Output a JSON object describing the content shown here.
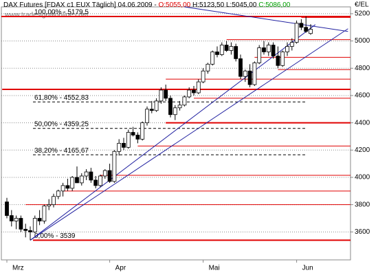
{
  "chart_data": {
    "type": "candlestick",
    "header": {
      "instrument": "DAX Futures [FDAX c1 EUX  Täglich]",
      "date": "04.06.2009 -",
      "open": "O:5055,00",
      "high": "H:5123,50",
      "low": "L:5045,00",
      "close": "C:5086,00"
    },
    "watermark": "www.tradesignalonline.com",
    "unit": "€/EL",
    "categories": [
      "Mrz",
      null,
      null,
      null,
      null,
      null,
      null,
      null,
      null,
      null,
      null,
      null,
      null,
      null,
      null,
      null,
      null,
      null,
      null,
      null,
      null,
      null,
      "Apr",
      null,
      null,
      null,
      null,
      null,
      null,
      null,
      null,
      null,
      null,
      null,
      null,
      null,
      null,
      null,
      null,
      null,
      null,
      null,
      "Mai",
      null,
      null,
      null,
      null,
      null,
      null,
      null,
      null,
      null,
      null,
      null,
      null,
      null,
      null,
      null,
      null,
      null,
      null,
      null,
      "Jun",
      null,
      null,
      null
    ],
    "open": [
      3820,
      3720,
      3680,
      3700,
      3620,
      3610,
      3600,
      3700,
      3680,
      3790,
      3800,
      3860,
      3900,
      3940,
      3920,
      4000,
      3960,
      4010,
      4040,
      3980,
      3940,
      4010,
      4050,
      3970,
      4190,
      4250,
      4220,
      4330,
      4310,
      4280,
      4400,
      4500,
      4490,
      4560,
      4640,
      4580,
      4460,
      4510,
      4530,
      4590,
      4640,
      4620,
      4700,
      4780,
      4830,
      4920,
      4900,
      4970,
      4930,
      4960,
      4870,
      4740,
      4780,
      4680,
      4840,
      4950,
      4920,
      4970,
      4890,
      4820,
      4920,
      4960,
      4990,
      5130,
      5100,
      5055
    ],
    "high": [
      3850,
      3760,
      3720,
      3720,
      3660,
      3640,
      3720,
      3760,
      3800,
      3840,
      3880,
      3910,
      3960,
      3990,
      4010,
      4080,
      4030,
      4060,
      4070,
      4010,
      4020,
      4060,
      4100,
      4200,
      4280,
      4290,
      4350,
      4370,
      4330,
      4410,
      4520,
      4560,
      4580,
      4660,
      4680,
      4600,
      4530,
      4560,
      4600,
      4660,
      4670,
      4720,
      4800,
      4840,
      4930,
      4960,
      4990,
      5000,
      4990,
      4980,
      4900,
      4790,
      4830,
      4850,
      4970,
      5000,
      4990,
      4990,
      4960,
      4930,
      4990,
      5020,
      5150,
      5160,
      5179.5,
      5123.5
    ],
    "low": [
      3700,
      3640,
      3620,
      3600,
      3560,
      3539,
      3590,
      3650,
      3660,
      3760,
      3780,
      3840,
      3860,
      3900,
      3900,
      3960,
      3940,
      3980,
      3960,
      3920,
      3930,
      3990,
      3960,
      3960,
      4160,
      4200,
      4210,
      4300,
      4250,
      4270,
      4380,
      4470,
      4480,
      4540,
      4560,
      4440,
      4420,
      4490,
      4520,
      4580,
      4600,
      4610,
      4690,
      4760,
      4820,
      4880,
      4890,
      4920,
      4900,
      4850,
      4720,
      4700,
      4660,
      4670,
      4830,
      4900,
      4890,
      4870,
      4800,
      4810,
      4890,
      4930,
      4980,
      5080,
      5060,
      5045
    ],
    "close": [
      3720,
      3680,
      3700,
      3620,
      3610,
      3600,
      3700,
      3680,
      3790,
      3800,
      3860,
      3900,
      3940,
      3920,
      4000,
      3960,
      4010,
      4040,
      3980,
      3940,
      4010,
      4050,
      3970,
      4190,
      4250,
      4220,
      4330,
      4310,
      4280,
      4400,
      4500,
      4490,
      4560,
      4640,
      4580,
      4460,
      4510,
      4530,
      4590,
      4640,
      4620,
      4700,
      4780,
      4830,
      4920,
      4900,
      4970,
      4930,
      4960,
      4870,
      4740,
      4780,
      4680,
      4840,
      4950,
      4920,
      4970,
      4890,
      4820,
      4920,
      4960,
      4990,
      5130,
      5100,
      5070,
      5086
    ],
    "ylim": [
      3395,
      5250
    ],
    "yticks": [
      3600,
      3800,
      4000,
      4200,
      4400,
      4600,
      4800,
      5000,
      5200
    ],
    "grid": true,
    "fib_levels": [
      {
        "value": 5179.5,
        "label": "100,00% - 5179,5"
      },
      {
        "value": 4552.83,
        "label": "61,80% - 4552,83"
      },
      {
        "value": 4359.25,
        "label": "50,00% - 4359,25"
      },
      {
        "value": 4165.67,
        "label": "38,20% - 4165,67"
      },
      {
        "value": 3539,
        "label": "0,00% - 3539"
      }
    ],
    "levels": [
      {
        "value": 4645,
        "from": -1,
        "thick": true
      },
      {
        "value": 4400,
        "from": 34,
        "thick": true
      },
      {
        "value": 5175,
        "from": 63,
        "thick": true
      },
      {
        "value": 5010,
        "from": 47,
        "thick": false
      },
      {
        "value": 4880,
        "from": 53,
        "thick": false
      },
      {
        "value": 4790,
        "from": 58,
        "thick": false
      },
      {
        "value": 4720,
        "from": 34,
        "thick": false
      },
      {
        "value": 4580,
        "from": 40,
        "thick": false
      },
      {
        "value": 4230,
        "from": 28,
        "thick": false
      },
      {
        "value": 4015,
        "from": 20,
        "thick": false
      },
      {
        "value": 3900,
        "from": 12,
        "thick": false
      },
      {
        "value": 3800,
        "from": 4,
        "thick": false
      }
    ],
    "trendlines": [
      {
        "x": [
          5,
          73
        ],
        "y": [
          3539,
          5090
        ]
      },
      {
        "x": [
          5,
          66
        ],
        "y": [
          3539,
          5120
        ]
      },
      {
        "x": [
          38,
          73
        ],
        "y": [
          5250,
          5070
        ]
      }
    ],
    "up_color": "#ffffff",
    "down_color": "#000000",
    "level_color": "#e00000",
    "trend_color": "#2020a0"
  }
}
